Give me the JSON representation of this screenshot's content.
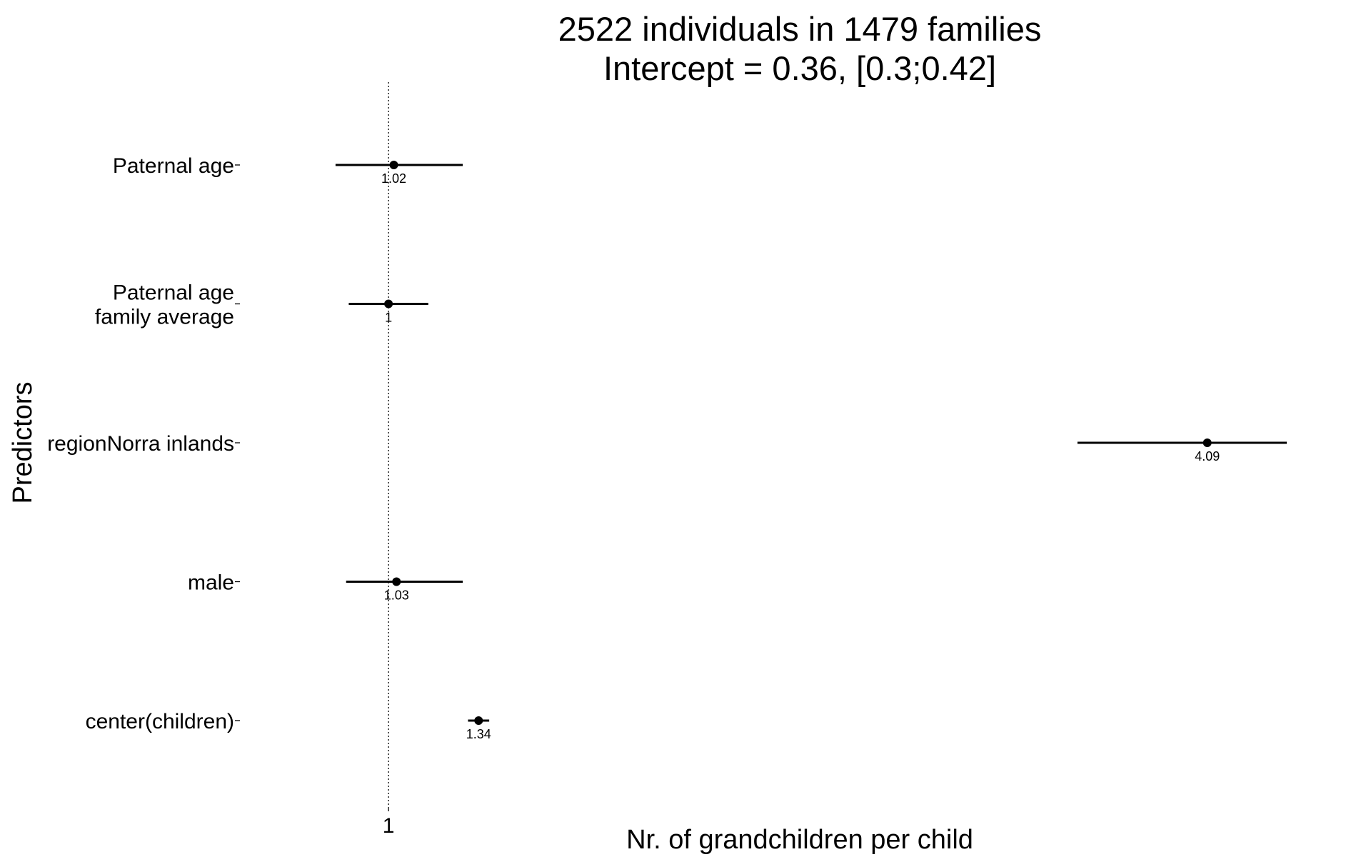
{
  "chart_data": {
    "type": "forest",
    "title": "2522 individuals in 1479 families",
    "subtitle": "Intercept = 0.36, [0.3;0.42]",
    "xlabel": "Nr. of grandchildren per child",
    "ylabel": "Predictors",
    "xlim": [
      0.45,
      4.6
    ],
    "x_ticks": [
      1
    ],
    "x_tick_labels": [
      "1"
    ],
    "reference_line": 1,
    "grid": false,
    "rows": [
      {
        "label": [
          "Paternal age"
        ],
        "estimate": 1.02,
        "estimate_label": "1.02",
        "ci": [
          0.8,
          1.28
        ]
      },
      {
        "label": [
          "Paternal age",
          "family average"
        ],
        "estimate": 1.0,
        "estimate_label": "1",
        "ci": [
          0.85,
          1.15
        ]
      },
      {
        "label": [
          "regionNorra inlands"
        ],
        "estimate": 4.09,
        "estimate_label": "4.09",
        "ci": [
          3.6,
          4.39
        ]
      },
      {
        "label": [
          "male"
        ],
        "estimate": 1.03,
        "estimate_label": "1.03",
        "ci": [
          0.84,
          1.28
        ]
      },
      {
        "label": [
          "center(children)"
        ],
        "estimate": 1.34,
        "estimate_label": "1.34",
        "ci": [
          1.3,
          1.38
        ]
      }
    ]
  }
}
